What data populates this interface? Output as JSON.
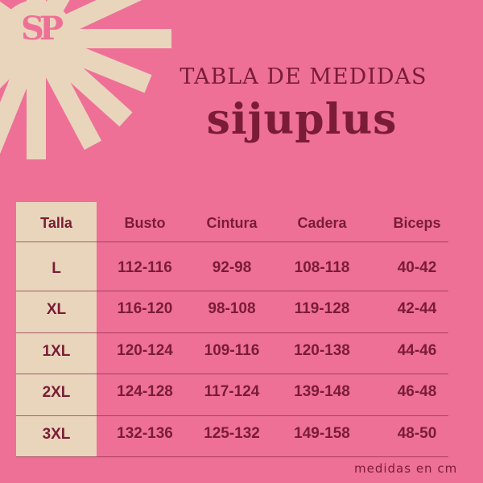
{
  "colors": {
    "background": "#EE7097",
    "accent": "#E9D5BC",
    "text": "#7A1C36"
  },
  "logo": {
    "text": "SP"
  },
  "title": "TABLA DE MEDIDAS",
  "brand": "sijuplus",
  "table": {
    "headers": [
      "Talla",
      "Busto",
      "Cintura",
      "Cadera",
      "Biceps"
    ],
    "rows": [
      [
        "L",
        "112-116",
        "92-98",
        "108-118",
        "40-42"
      ],
      [
        "XL",
        "116-120",
        "98-108",
        "119-128",
        "42-44"
      ],
      [
        "1XL",
        "120-124",
        "109-116",
        "120-138",
        "44-46"
      ],
      [
        "2XL",
        "124-128",
        "117-124",
        "139-148",
        "46-48"
      ],
      [
        "3XL",
        "132-136",
        "125-132",
        "149-158",
        "48-50"
      ]
    ]
  },
  "note": "medidas en cm"
}
